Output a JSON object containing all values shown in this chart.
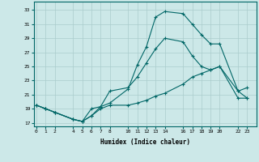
{
  "xlabel": "Humidex (Indice chaleur)",
  "bg_color": "#cce8e8",
  "grid_color": "#aacccc",
  "line_color": "#006666",
  "lines": [
    {
      "x": [
        0,
        1,
        2,
        4,
        5,
        6,
        7,
        8,
        10,
        11,
        12,
        13,
        14,
        16,
        17,
        18,
        19,
        20,
        22,
        23
      ],
      "y": [
        19.5,
        19.0,
        18.5,
        17.5,
        17.2,
        19.0,
        19.3,
        19.8,
        21.8,
        25.2,
        27.8,
        32.0,
        32.8,
        32.5,
        31.0,
        29.5,
        28.2,
        28.2,
        21.5,
        20.5
      ]
    },
    {
      "x": [
        0,
        1,
        2,
        4,
        5,
        6,
        7,
        8,
        10,
        11,
        12,
        13,
        14,
        16,
        17,
        18,
        19,
        20,
        22,
        23
      ],
      "y": [
        19.5,
        19.0,
        18.5,
        17.5,
        17.2,
        18.0,
        19.3,
        21.5,
        22.0,
        23.5,
        25.5,
        27.5,
        29.0,
        28.5,
        26.5,
        25.0,
        24.5,
        25.0,
        21.5,
        22.0
      ]
    },
    {
      "x": [
        0,
        1,
        2,
        4,
        5,
        6,
        7,
        8,
        10,
        11,
        12,
        13,
        14,
        16,
        17,
        18,
        19,
        20,
        22,
        23
      ],
      "y": [
        19.5,
        19.0,
        18.5,
        17.5,
        17.2,
        18.0,
        19.0,
        19.5,
        19.5,
        19.8,
        20.2,
        20.8,
        21.2,
        22.5,
        23.5,
        24.0,
        24.5,
        25.0,
        20.5,
        20.5
      ]
    }
  ],
  "xticks": [
    0,
    1,
    2,
    4,
    5,
    6,
    7,
    8,
    10,
    11,
    12,
    13,
    14,
    16,
    17,
    18,
    19,
    20,
    22,
    23
  ],
  "xtick_labels": [
    "0",
    "1",
    "2",
    "4",
    "5",
    "6",
    "7",
    "8",
    "10",
    "11",
    "12",
    "13",
    "14",
    "16",
    "17",
    "18",
    "19",
    "20",
    "22",
    "23"
  ],
  "yticks": [
    17,
    19,
    21,
    23,
    25,
    27,
    29,
    31,
    33
  ],
  "ytick_labels": [
    "17",
    "19",
    "21",
    "23",
    "25",
    "27",
    "29",
    "31",
    "33"
  ],
  "xlim": [
    -0.3,
    24.0
  ],
  "ylim": [
    16.5,
    34.2
  ]
}
